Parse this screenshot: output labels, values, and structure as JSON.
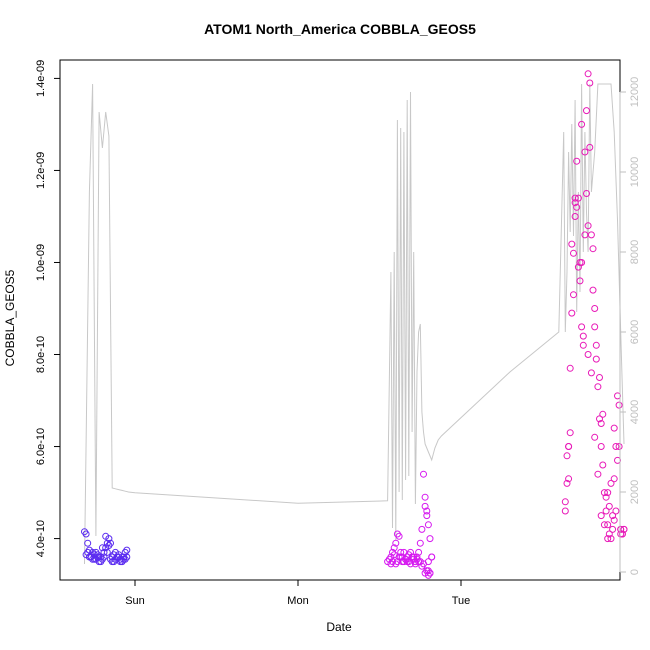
{
  "chart_data": {
    "type": "scatter",
    "title": "ATOM1 North_America COBBLA_GEOS5",
    "xlabel": "Date",
    "ylabel": "COBBLA_GEOS5",
    "x_ticks": [
      "Sun",
      "Mon",
      "Tue"
    ],
    "y_left": {
      "ticks": [
        "4.0e-10",
        "6.0e-10",
        "8.0e-10",
        "1.0e-09",
        "1.2e-09",
        "1.4e-09"
      ],
      "lim": [
        3.1e-10,
        1.44e-09
      ]
    },
    "y_right": {
      "ticks": [
        "0",
        "2000",
        "4000",
        "6000",
        "8000",
        "10000",
        "12000"
      ],
      "lim": [
        -200,
        12800
      ]
    },
    "colors": {
      "sun_points": "#5b2cf0",
      "mon_points": "#d61af0",
      "tue_points": "#e81ab8",
      "altitude_line": "#c8c8c8",
      "right_axis": "#bfbfbf"
    },
    "secondary_line": {
      "name": "",
      "x": [
        0.69,
        0.72,
        0.74,
        0.76,
        0.78,
        0.8,
        0.82,
        0.84,
        0.86,
        0.88,
        0.9,
        0.92,
        0.94,
        0.96,
        1.0,
        1.5,
        2.0,
        2.55,
        2.57,
        2.58,
        2.59,
        2.6,
        2.61,
        2.62,
        2.63,
        2.64,
        2.65,
        2.66,
        2.67,
        2.68,
        2.69,
        2.7,
        2.71,
        2.72,
        2.73,
        2.74,
        2.75,
        2.76,
        2.77,
        2.78,
        2.8,
        2.82,
        2.84,
        2.86,
        2.88,
        3.3,
        3.6,
        3.63,
        3.64,
        3.65,
        3.66,
        3.67,
        3.68,
        3.69,
        3.7,
        3.71,
        3.72,
        3.73,
        3.74,
        3.75,
        3.76,
        3.77,
        3.78,
        3.79,
        3.8,
        3.82,
        3.84,
        3.86,
        3.88,
        3.9,
        3.92,
        3.94,
        3.96,
        3.98,
        4.0
      ],
      "y": [
        200,
        9500,
        12200,
        900,
        11500,
        10600,
        11500,
        10900,
        2100,
        2080,
        2060,
        2040,
        2020,
        2000,
        1980,
        1850,
        1720,
        1780,
        7500,
        1100,
        8000,
        800,
        11300,
        2000,
        11100,
        1800,
        11000,
        2300,
        11800,
        2400,
        12000,
        3500,
        8000,
        1700,
        5000,
        6000,
        6200,
        4000,
        3500,
        3200,
        3000,
        2800,
        3100,
        3300,
        3400,
        5000,
        6000,
        11000,
        6000,
        7500,
        10500,
        8500,
        11200,
        8400,
        11800,
        6500,
        9500,
        7000,
        12200,
        8000,
        11000,
        9000,
        8000,
        12200,
        9500,
        10500,
        12200,
        12200,
        12200,
        12200,
        12200,
        11000,
        8800,
        6000,
        3200
      ]
    },
    "series": [
      {
        "name": "",
        "x": [
          0.69,
          0.7,
          0.71,
          0.72,
          0.73,
          0.74,
          0.75,
          0.76,
          0.77,
          0.78,
          0.79,
          0.8,
          0.81,
          0.82,
          0.83,
          0.84,
          0.85,
          0.86,
          0.87,
          0.88,
          0.89,
          0.9,
          0.91,
          0.92,
          0.93,
          0.94,
          0.95,
          0.7,
          0.72,
          0.74,
          0.76,
          0.78,
          0.8,
          0.82,
          0.84,
          0.86,
          0.88,
          0.9,
          0.92,
          0.94,
          0.71,
          0.73,
          0.75,
          0.77,
          0.79,
          0.81,
          0.83,
          0.85,
          0.87,
          0.89,
          0.91,
          0.93,
          0.95
        ],
        "y": [
          4.15e-10,
          4.1e-10,
          3.9e-10,
          3.75e-10,
          3.6e-10,
          3.55e-10,
          3.65e-10,
          3.7e-10,
          3.6e-10,
          3.5e-10,
          3.6e-10,
          3.55e-10,
          3.7e-10,
          3.8e-10,
          3.9e-10,
          4e-10,
          3.9e-10,
          3.6e-10,
          3.5e-10,
          3.55e-10,
          3.6e-10,
          3.65e-10,
          3.55e-10,
          3.5e-10,
          3.6e-10,
          3.7e-10,
          3.75e-10,
          3.65e-10,
          3.6e-10,
          3.7e-10,
          3.55e-10,
          3.6e-10,
          3.8e-10,
          4.05e-10,
          3.85e-10,
          3.5e-10,
          3.7e-10,
          3.6e-10,
          3.5e-10,
          3.55e-10,
          3.7e-10,
          3.6e-10,
          3.55e-10,
          3.65e-10,
          3.5e-10,
          3.6e-10,
          3.7e-10,
          3.55e-10,
          3.65e-10,
          3.6e-10,
          3.5e-10,
          3.55e-10,
          3.6e-10
        ]
      },
      {
        "name": "",
        "x": [
          2.55,
          2.56,
          2.57,
          2.58,
          2.59,
          2.6,
          2.61,
          2.62,
          2.63,
          2.64,
          2.65,
          2.66,
          2.67,
          2.68,
          2.69,
          2.7,
          2.71,
          2.72,
          2.73,
          2.74,
          2.75,
          2.76,
          2.77,
          2.78,
          2.79,
          2.8,
          2.81,
          2.82,
          2.57,
          2.59,
          2.61,
          2.63,
          2.65,
          2.67,
          2.69,
          2.71,
          2.73,
          2.75,
          2.77,
          2.79,
          2.58,
          2.6,
          2.62,
          2.64,
          2.66,
          2.68,
          2.7,
          2.72,
          2.74,
          2.76,
          2.78,
          2.8,
          2.81,
          2.79,
          2.78,
          2.79,
          2.8,
          2.81,
          2.8,
          2.82
        ],
        "y": [
          3.5e-10,
          3.55e-10,
          3.6e-10,
          3.7e-10,
          3.8e-10,
          3.9e-10,
          4.1e-10,
          4.05e-10,
          3.7e-10,
          3.6e-10,
          3.5e-10,
          3.55e-10,
          3.6e-10,
          3.65e-10,
          3.7e-10,
          3.6e-10,
          3.55e-10,
          3.5e-10,
          3.6e-10,
          3.7e-10,
          3.9e-10,
          4.2e-10,
          5.4e-10,
          4.9e-10,
          4.5e-10,
          4.3e-10,
          4e-10,
          3.6e-10,
          3.45e-10,
          3.65e-10,
          3.5e-10,
          3.6e-10,
          3.7e-10,
          3.5e-10,
          3.45e-10,
          3.6e-10,
          3.55e-10,
          3.5e-10,
          3.45e-10,
          3.3e-10,
          3.5e-10,
          3.45e-10,
          3.6e-10,
          3.5e-10,
          3.55e-10,
          3.5e-10,
          3.6e-10,
          3.45e-10,
          3.5e-10,
          3.4e-10,
          3.25e-10,
          3.2e-10,
          3.25e-10,
          4.6e-10,
          4.7e-10,
          3.3e-10,
          3.3e-10,
          3.25e-10,
          3.5e-10,
          3.6e-10
        ]
      },
      {
        "name": "",
        "x": [
          3.64,
          3.65,
          3.66,
          3.67,
          3.68,
          3.69,
          3.7,
          3.71,
          3.72,
          3.73,
          3.74,
          3.75,
          3.76,
          3.77,
          3.78,
          3.79,
          3.8,
          3.81,
          3.82,
          3.83,
          3.84,
          3.85,
          3.86,
          3.87,
          3.88,
          3.89,
          3.9,
          3.91,
          3.92,
          3.93,
          3.94,
          3.95,
          3.96,
          3.97,
          3.98,
          3.99,
          4.0,
          3.64,
          3.66,
          3.68,
          3.7,
          3.72,
          3.74,
          3.76,
          3.78,
          3.8,
          3.82,
          3.84,
          3.86,
          3.88,
          3.9,
          3.92,
          3.94,
          3.96,
          3.98,
          4.0,
          3.65,
          3.67,
          3.69,
          3.71,
          3.73,
          3.75,
          3.77,
          3.79,
          3.81,
          3.83,
          3.85,
          3.87,
          3.89,
          3.91,
          3.93,
          3.95,
          3.97,
          3.99,
          3.66,
          3.7,
          3.74,
          3.78,
          3.82,
          3.86,
          3.9,
          3.94,
          3.98
        ],
        "y": [
          4.6e-10,
          5.2e-10,
          6e-10,
          7.7e-10,
          8.9e-10,
          1.02e-09,
          1.13e-09,
          1.22e-09,
          1.14e-09,
          9.6e-10,
          1e-09,
          8.2e-10,
          1.24e-09,
          1.33e-09,
          1.41e-09,
          1.25e-09,
          1.06e-09,
          9.4e-10,
          8.6e-10,
          7.9e-10,
          7.3e-10,
          6.6e-10,
          6e-10,
          5.6e-10,
          5e-10,
          4.6e-10,
          4.3e-10,
          4.1e-10,
          4e-10,
          4.2e-10,
          5.3e-10,
          6e-10,
          7.1e-10,
          6.9e-10,
          4.2e-10,
          4.1e-10,
          4.2e-10,
          4.8e-10,
          6e-10,
          1.04e-09,
          1.1e-09,
          9.9e-10,
          1.3e-09,
          1.06e-09,
          8e-10,
          7.6e-10,
          6.2e-10,
          5.4e-10,
          4.5e-10,
          4.3e-10,
          4e-10,
          5.2e-10,
          6.4e-10,
          5.7e-10,
          4.1e-10,
          4.2e-10,
          5.8e-10,
          6.3e-10,
          9.3e-10,
          1.12e-09,
          1e-09,
          8.4e-10,
          1.15e-09,
          1.39e-09,
          1.03e-09,
          8.2e-10,
          7.5e-10,
          6.7e-10,
          4.9e-10,
          4.7e-10,
          4.5e-10,
          4.6e-10,
          6e-10,
          4.1e-10,
          5.3e-10,
          1.14e-09,
          8.6e-10,
          1.08e-09,
          9e-10,
          6.5e-10,
          5e-10,
          4.4e-10,
          4.2e-10
        ]
      }
    ]
  }
}
